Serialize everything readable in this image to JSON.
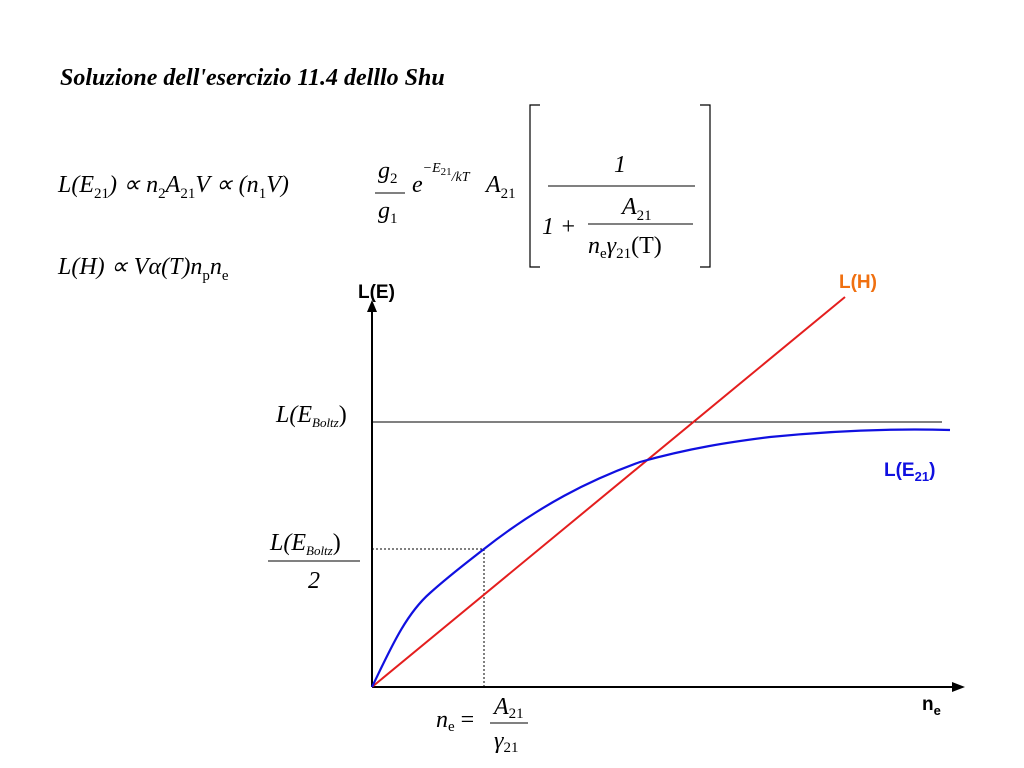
{
  "title": "Soluzione dell'esercizio 11.4 delllo Shu",
  "formula_1": {
    "main": [
      "L(E",
      "21",
      ") ∝ n",
      "2",
      "A",
      "21",
      "V ∝ (n",
      "1",
      "V)"
    ],
    "g2": [
      "g",
      "2"
    ],
    "g1": [
      "g",
      "1"
    ],
    "exp": [
      "e",
      "−E",
      "21",
      "/kT"
    ],
    "a21": [
      "A",
      "21"
    ],
    "numerator": "1",
    "one_plus": "1 +",
    "inner_num": [
      "A",
      "21"
    ],
    "inner_den": [
      "n",
      "e",
      "γ",
      "21",
      "(T)"
    ]
  },
  "formula_2": [
    "L(H) ∝ Vα(T)n",
    "p",
    "n",
    "e"
  ],
  "diagram": {
    "y_axis_label": "L(E)",
    "x_axis_label": [
      "n",
      "e"
    ],
    "lh_label": "L(H)",
    "le_label": [
      "L(E",
      "21",
      ")"
    ],
    "boltz_label": [
      "L(E",
      "Boltz",
      ")"
    ],
    "half_label": {
      "num": [
        "L(E",
        "Boltz",
        ")"
      ],
      "den": "2"
    },
    "ne_label": {
      "lhs": [
        "n",
        "e",
        " ="
      ],
      "num": [
        "A",
        "21"
      ],
      "den": [
        "γ",
        "21"
      ]
    }
  }
}
